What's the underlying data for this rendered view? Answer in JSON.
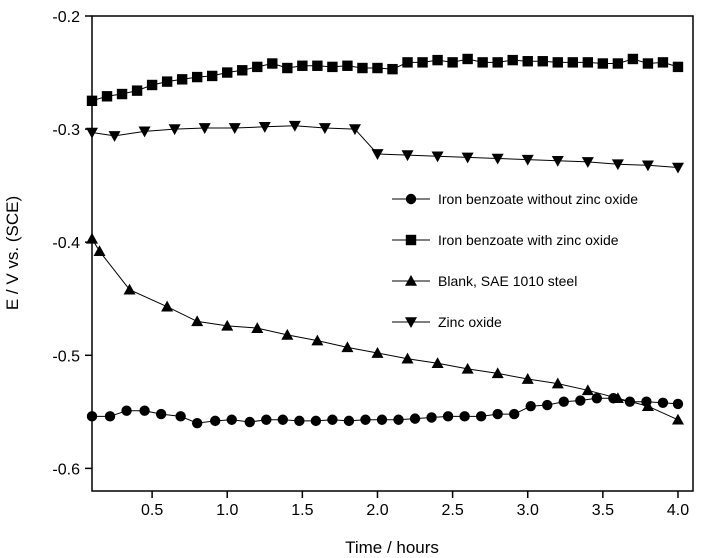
{
  "chart_data": {
    "type": "line",
    "title": "",
    "xlabel": "Time / hours",
    "ylabel": "E / V vs. (SCE)",
    "xlim": [
      0.1,
      4.1
    ],
    "ylim": [
      -0.62,
      -0.2
    ],
    "xticks": [
      "0.5",
      "1.0",
      "1.5",
      "2.0",
      "2.5",
      "3.0",
      "3.5",
      "4.0"
    ],
    "yticks": [
      "-0.2",
      "-0.3",
      "-0.4",
      "-0.5",
      "-0.6"
    ],
    "grid": false,
    "legend_position": "right-center",
    "series": [
      {
        "name": "Iron benzoate without zinc oxide",
        "marker": "circle",
        "x": [
          0.1,
          0.22,
          0.33,
          0.45,
          0.56,
          0.69,
          0.8,
          0.92,
          1.03,
          1.15,
          1.26,
          1.37,
          1.48,
          1.59,
          1.7,
          1.81,
          1.92,
          2.03,
          2.14,
          2.25,
          2.36,
          2.47,
          2.58,
          2.69,
          2.8,
          2.91,
          3.02,
          3.13,
          3.24,
          3.35,
          3.46,
          3.57,
          3.68,
          3.79,
          3.9,
          4.0
        ],
        "y": [
          -0.554,
          -0.554,
          -0.549,
          -0.549,
          -0.552,
          -0.554,
          -0.56,
          -0.558,
          -0.557,
          -0.559,
          -0.557,
          -0.557,
          -0.558,
          -0.558,
          -0.557,
          -0.558,
          -0.557,
          -0.557,
          -0.557,
          -0.556,
          -0.555,
          -0.554,
          -0.554,
          -0.554,
          -0.552,
          -0.552,
          -0.545,
          -0.544,
          -0.541,
          -0.54,
          -0.538,
          -0.538,
          -0.541,
          -0.541,
          -0.542,
          -0.543
        ]
      },
      {
        "name": "Iron benzoate with zinc oxide",
        "marker": "square",
        "x": [
          0.1,
          0.2,
          0.3,
          0.4,
          0.5,
          0.6,
          0.7,
          0.8,
          0.9,
          1.0,
          1.1,
          1.2,
          1.3,
          1.4,
          1.5,
          1.6,
          1.7,
          1.8,
          1.9,
          2.0,
          2.1,
          2.2,
          2.3,
          2.4,
          2.5,
          2.6,
          2.7,
          2.8,
          2.9,
          3.0,
          3.1,
          3.2,
          3.3,
          3.4,
          3.5,
          3.6,
          3.7,
          3.8,
          3.9,
          4.0
        ],
        "y": [
          -0.275,
          -0.271,
          -0.269,
          -0.266,
          -0.261,
          -0.258,
          -0.256,
          -0.254,
          -0.253,
          -0.25,
          -0.248,
          -0.245,
          -0.242,
          -0.246,
          -0.244,
          -0.244,
          -0.245,
          -0.244,
          -0.246,
          -0.246,
          -0.247,
          -0.241,
          -0.241,
          -0.239,
          -0.241,
          -0.238,
          -0.241,
          -0.241,
          -0.239,
          -0.24,
          -0.24,
          -0.241,
          -0.241,
          -0.241,
          -0.242,
          -0.242,
          -0.238,
          -0.242,
          -0.241,
          -0.245
        ]
      },
      {
        "name": "Blank, SAE 1010 steel",
        "marker": "triangle-up",
        "x": [
          0.1,
          0.15,
          0.35,
          0.6,
          0.8,
          1.0,
          1.2,
          1.4,
          1.6,
          1.8,
          2.0,
          2.2,
          2.4,
          2.6,
          2.8,
          3.0,
          3.2,
          3.4,
          3.6,
          3.8,
          4.0
        ],
        "y": [
          -0.397,
          -0.408,
          -0.442,
          -0.457,
          -0.47,
          -0.474,
          -0.476,
          -0.482,
          -0.487,
          -0.493,
          -0.498,
          -0.503,
          -0.507,
          -0.512,
          -0.516,
          -0.521,
          -0.525,
          -0.531,
          -0.538,
          -0.545,
          -0.557
        ]
      },
      {
        "name": "Zinc oxide",
        "marker": "triangle-down",
        "x": [
          0.1,
          0.25,
          0.45,
          0.65,
          0.85,
          1.05,
          1.25,
          1.45,
          1.65,
          1.85,
          2.0,
          2.2,
          2.4,
          2.6,
          2.8,
          3.0,
          3.2,
          3.4,
          3.6,
          3.8,
          4.0
        ],
        "y": [
          -0.303,
          -0.306,
          -0.302,
          -0.3,
          -0.299,
          -0.299,
          -0.298,
          -0.297,
          -0.299,
          -0.3,
          -0.322,
          -0.323,
          -0.324,
          -0.325,
          -0.326,
          -0.327,
          -0.328,
          -0.329,
          -0.331,
          -0.332,
          -0.334
        ]
      }
    ]
  }
}
